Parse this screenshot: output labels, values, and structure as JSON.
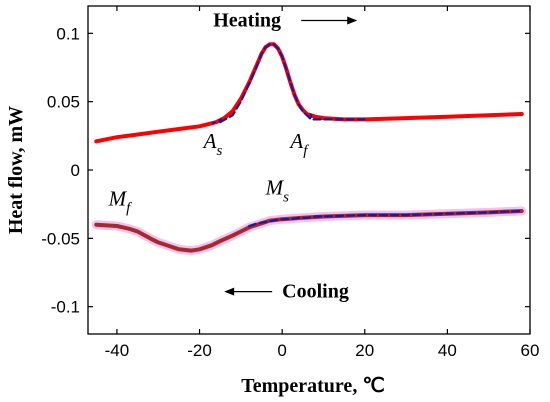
{
  "chart_data": {
    "type": "line",
    "xlabel": "Temperature, ℃",
    "ylabel": "Heat flow, mW",
    "xlim": [
      -47,
      60
    ],
    "ylim": [
      -0.12,
      0.12
    ],
    "x_ticks": [
      -40,
      -20,
      0,
      20,
      40,
      60
    ],
    "y_ticks": [
      0.1,
      0.05,
      0,
      -0.05,
      -0.1
    ],
    "x_tick_labels": [
      "-40",
      "-20",
      "0",
      "20",
      "40",
      "60"
    ],
    "y_tick_labels": [
      "0.1",
      "0.05",
      "0",
      "-0.05",
      "-0.1"
    ],
    "grid": false,
    "series": [
      {
        "color": "#ff0000",
        "x": [
          -45,
          -40,
          -35,
          -30,
          -25,
          -20,
          -16,
          -14,
          -12,
          -10,
          -8,
          -6,
          -5,
          -4,
          -3,
          -2,
          -1,
          0,
          1,
          2,
          3,
          4,
          5,
          6,
          7,
          8,
          10,
          15,
          20,
          30,
          40,
          50,
          58
        ],
        "y": [
          0.021,
          0.024,
          0.026,
          0.028,
          0.03,
          0.032,
          0.035,
          0.038,
          0.043,
          0.052,
          0.064,
          0.078,
          0.085,
          0.09,
          0.092,
          0.092,
          0.089,
          0.083,
          0.074,
          0.064,
          0.055,
          0.048,
          0.044,
          0.041,
          0.04,
          0.039,
          0.038,
          0.037,
          0.037,
          0.038,
          0.039,
          0.04,
          0.041
        ]
      },
      {
        "color": "#1a1aa0",
        "dashed": true,
        "x": [
          -15,
          -12,
          -10,
          -8,
          -6,
          -5,
          -4,
          -3,
          -2,
          -1,
          0,
          1,
          2,
          3,
          4,
          5,
          6,
          7,
          8,
          10,
          15,
          20
        ],
        "y": [
          0.035,
          0.04,
          0.05,
          0.063,
          0.077,
          0.085,
          0.09,
          0.092,
          0.092,
          0.089,
          0.083,
          0.074,
          0.064,
          0.055,
          0.048,
          0.043,
          0.04,
          0.037,
          0.037,
          0.037,
          0.037,
          0.037
        ]
      },
      {
        "color": "#a52a2a",
        "halo": "#f2c0f2",
        "x": [
          -45,
          -40,
          -37,
          -35,
          -32,
          -30,
          -27,
          -25,
          -22,
          -20,
          -17,
          -15,
          -12,
          -10,
          -8,
          -5,
          -3,
          0,
          5,
          10,
          20,
          30,
          40,
          50,
          58
        ],
        "y": [
          -0.04,
          -0.041,
          -0.043,
          -0.045,
          -0.05,
          -0.053,
          -0.056,
          -0.058,
          -0.059,
          -0.058,
          -0.055,
          -0.052,
          -0.048,
          -0.045,
          -0.042,
          -0.039,
          -0.037,
          -0.036,
          -0.035,
          -0.034,
          -0.033,
          -0.033,
          -0.032,
          -0.031,
          -0.03
        ]
      },
      {
        "color": "#1a1aa0",
        "dashed": true,
        "x": [
          -8,
          -6,
          -4,
          -2,
          0,
          2,
          4,
          6,
          8,
          10,
          20,
          30,
          40,
          50,
          58
        ],
        "y": [
          -0.041,
          -0.039,
          -0.038,
          -0.037,
          -0.036,
          -0.036,
          -0.035,
          -0.035,
          -0.034,
          -0.034,
          -0.033,
          -0.033,
          -0.032,
          -0.031,
          -0.03
        ]
      }
    ],
    "annotations": {
      "heating": {
        "text": "Heating",
        "arrow": "right",
        "x": -7,
        "y": 0.105
      },
      "cooling": {
        "text": "Cooling",
        "arrow": "left",
        "x": 0,
        "y": -0.089
      },
      "as": {
        "main": "A",
        "sub": "s",
        "x": -19,
        "y": 0.016
      },
      "af": {
        "main": "A",
        "sub": "f",
        "x": 2,
        "y": 0.016
      },
      "mf": {
        "main": "M",
        "sub": "f",
        "x": -42,
        "y": -0.026
      },
      "ms": {
        "main": "M",
        "sub": "s",
        "x": -4,
        "y": -0.018
      },
      "as_marker": {
        "x1": -17,
        "y1": 0.034,
        "x2": -14,
        "y2": 0.038
      },
      "af_marker": {
        "x1": 7,
        "y1": 0.041,
        "x2": 7,
        "y2": 0.037
      }
    }
  }
}
